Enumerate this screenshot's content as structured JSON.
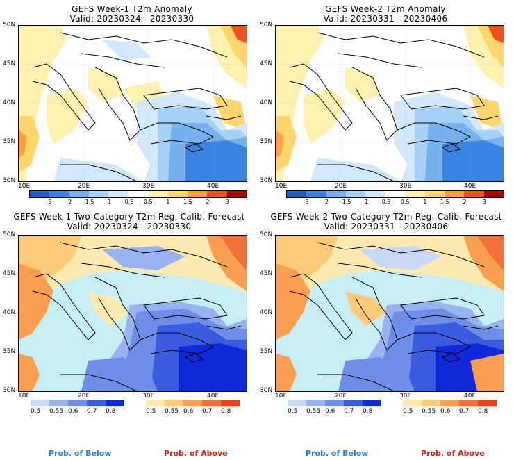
{
  "panels": [
    {
      "title_line1": "GEFS Week-1 T2m Anomaly",
      "title_line2": "Valid: 20230324 - 20230330"
    },
    {
      "title_line1": "GEFS Week-2 T2m Anomaly",
      "title_line2": "Valid: 20230331 - 20230406"
    },
    {
      "title_line1": "GEFS Week-1 Two-Category T2m Reg. Calib. Forecast",
      "title_line2": "Valid: 20230324 - 20230330"
    },
    {
      "title_line1": "GEFS Week-2 Two-Category T2m Reg. Calib. Forecast",
      "title_line2": "Valid: 20230331 - 20230406"
    }
  ],
  "lat_ticks": [
    "50N",
    "45N",
    "40N",
    "35N",
    "30N"
  ],
  "lon_ticks": [
    "10E",
    "20E",
    "30E",
    "40E"
  ],
  "anomaly_colorbar": {
    "labels": [
      "-3",
      "-2",
      "-1.5",
      "-1",
      "-0.5",
      "0.5",
      "1",
      "1.5",
      "2",
      "3"
    ],
    "colors": [
      "#1f5fc0",
      "#3c82e0",
      "#78b2ee",
      "#a6d0f5",
      "#d2e8fb",
      "#ffffff",
      "#fff2b0",
      "#ffd66e",
      "#ffa040",
      "#f05020",
      "#b00000"
    ]
  },
  "prob_below": {
    "labels": [
      "0.5",
      "0.55",
      "0.6",
      "0.7",
      "0.8"
    ],
    "colors": [
      "#c8d8f8",
      "#98b4f0",
      "#6e8ee8",
      "#3c5ce0",
      "#1028d8"
    ],
    "caption": "Prob. of Below",
    "caption_color": "#2a80e8"
  },
  "prob_above": {
    "labels": [
      "0.5",
      "0.55",
      "0.6",
      "0.7",
      "0.8"
    ],
    "colors": [
      "#fdeab0",
      "#fcca78",
      "#f8a050",
      "#f07038",
      "#e84018"
    ],
    "caption": "Prob. of Above",
    "caption_color": "#e02010"
  }
}
